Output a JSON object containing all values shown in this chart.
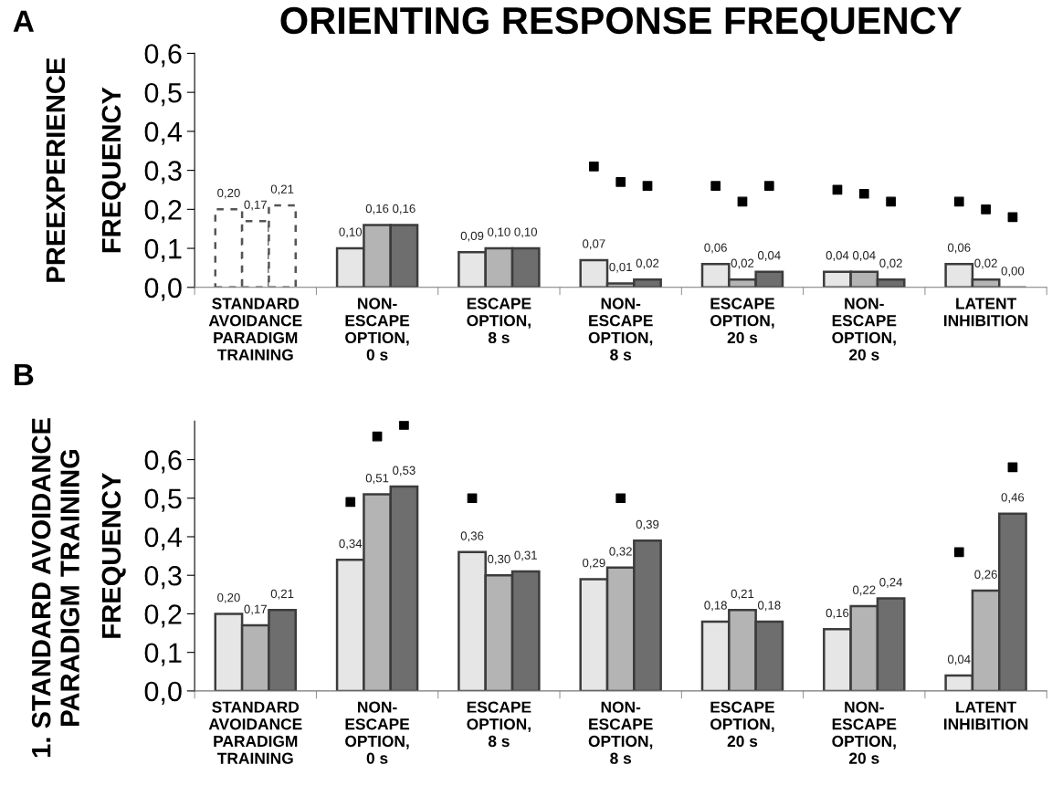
{
  "chart_data": [
    {
      "type": "bar",
      "title": "ORIENTING RESPONSE FREQUENCY",
      "ylabel": "FREQUENCY",
      "annotations": [
        "A",
        "PREEXPERIENCE"
      ],
      "categories": [
        "STANDARD\nAVOIDANCE\nPARADIGM\nTRAINING",
        "NON-\nESCAPE\nOPTION,\n0 s",
        "ESCAPE\nOPTION,\n8 s",
        "NON-\nESCAPE\nOPTION,\n8 s",
        "ESCAPE\nOPTION,\n20 s",
        "NON-\nESCAPE\nOPTION,\n20 s",
        "LATENT\nINHIBITION"
      ],
      "ylim": [
        0,
        0.6
      ],
      "yticks": [
        {
          "value": 0,
          "label": "0,0"
        },
        {
          "value": 0.1,
          "label": "0,1"
        },
        {
          "value": 0.2,
          "label": "0,2"
        },
        {
          "value": 0.3,
          "label": "0,3"
        },
        {
          "value": 0.4,
          "label": "0,4"
        },
        {
          "value": 0.5,
          "label": "0,5"
        },
        {
          "value": 0.6,
          "label": "0,6"
        }
      ],
      "grid": false,
      "legend": false,
      "series": [
        {
          "color": "#e6e6e6",
          "values": [
            null,
            0.1,
            0.09,
            0.07,
            0.06,
            0.04,
            0.06
          ],
          "value_labels": [
            null,
            "0,10",
            "0,09",
            "0,07",
            "0,06",
            "0,04",
            "0,06"
          ]
        },
        {
          "color": "#b4b4b4",
          "values": [
            null,
            0.16,
            0.1,
            0.01,
            0.02,
            0.04,
            0.02
          ],
          "value_labels": [
            null,
            "0,16",
            "0,10",
            "0,01",
            "0,02",
            "0,04",
            "0,02"
          ]
        },
        {
          "color": "#6e6e6e",
          "values": [
            null,
            0.16,
            0.1,
            0.02,
            0.04,
            0.02,
            0.0
          ],
          "value_labels": [
            null,
            "0,16",
            "0,10",
            "0,02",
            "0,04",
            "0,02",
            "0,00"
          ]
        },
        {
          "color": "#ffffff",
          "line_style": "dashed",
          "values": [
            0.2,
            null,
            null,
            null,
            null,
            null,
            null
          ],
          "value_labels": [
            "0,20",
            null,
            null,
            null,
            null,
            null,
            null
          ]
        },
        {
          "color": "#ffffff",
          "line_style": "dashed",
          "values": [
            0.17,
            null,
            null,
            null,
            null,
            null,
            null
          ],
          "value_labels": [
            "0,17",
            null,
            null,
            null,
            null,
            null,
            null
          ]
        },
        {
          "color": "#ffffff",
          "line_style": "dashed",
          "values": [
            0.21,
            null,
            null,
            null,
            null,
            null,
            null
          ],
          "value_labels": [
            "0,21",
            null,
            null,
            null,
            null,
            null,
            null
          ]
        },
        {
          "type": "scatter",
          "color": "#000000",
          "marker": "square",
          "values": [
            null,
            null,
            null,
            0.31,
            0.26,
            0.25,
            0.22
          ]
        },
        {
          "type": "scatter",
          "color": "#000000",
          "marker": "square",
          "values": [
            null,
            null,
            null,
            0.27,
            0.22,
            0.24,
            0.2
          ]
        },
        {
          "type": "scatter",
          "color": "#000000",
          "marker": "square",
          "values": [
            null,
            null,
            null,
            0.26,
            0.26,
            0.22,
            0.18
          ]
        }
      ]
    },
    {
      "type": "bar",
      "ylabel": "FREQUENCY",
      "annotations": [
        "B",
        "1. STANDARD AVOIDANCE\nPARADIGM TRAINING"
      ],
      "categories": [
        "STANDARD\nAVOIDANCE\nPARADIGM\nTRAINING",
        "NON-\nESCAPE\nOPTION,\n0 s",
        "ESCAPE\nOPTION,\n8 s",
        "NON-\nESCAPE\nOPTION,\n8 s",
        "ESCAPE\nOPTION,\n20 s",
        "NON-\nESCAPE\nOPTION,\n20 s",
        "LATENT\nINHIBITION"
      ],
      "ylim": [
        0,
        0.7
      ],
      "yticks": [
        {
          "value": 0,
          "label": "0,0"
        },
        {
          "value": 0.1,
          "label": "0,1"
        },
        {
          "value": 0.2,
          "label": "0,2"
        },
        {
          "value": 0.3,
          "label": "0,3"
        },
        {
          "value": 0.4,
          "label": "0,4"
        },
        {
          "value": 0.5,
          "label": "0,5"
        },
        {
          "value": 0.6,
          "label": "0,6"
        }
      ],
      "grid": false,
      "legend": false,
      "series": [
        {
          "color": "#e6e6e6",
          "values": [
            0.2,
            0.34,
            0.36,
            0.29,
            0.18,
            0.16,
            0.04
          ],
          "value_labels": [
            "0,20",
            "0,34",
            "0,36",
            "0,29",
            "0,18",
            "0,16",
            "0,04"
          ]
        },
        {
          "color": "#b4b4b4",
          "values": [
            0.17,
            0.51,
            0.3,
            0.32,
            0.21,
            0.22,
            0.26
          ],
          "value_labels": [
            "0,17",
            "0,51",
            "0,30",
            "0,32",
            "0,21",
            "0,22",
            "0,26"
          ]
        },
        {
          "color": "#6e6e6e",
          "values": [
            0.21,
            0.53,
            0.31,
            0.39,
            0.18,
            0.24,
            0.46
          ],
          "value_labels": [
            "0,21",
            "0,53",
            "0,31",
            "0,39",
            "0,18",
            "0,24",
            "0,46"
          ]
        },
        {
          "type": "scatter",
          "color": "#000000",
          "marker": "square",
          "values": [
            null,
            0.49,
            0.5,
            null,
            null,
            null,
            0.36
          ]
        },
        {
          "type": "scatter",
          "color": "#000000",
          "marker": "square",
          "values": [
            null,
            0.66,
            null,
            0.5,
            null,
            null,
            null
          ]
        },
        {
          "type": "scatter",
          "color": "#000000",
          "marker": "square",
          "values": [
            null,
            0.69,
            null,
            null,
            null,
            null,
            0.58
          ]
        }
      ]
    }
  ]
}
